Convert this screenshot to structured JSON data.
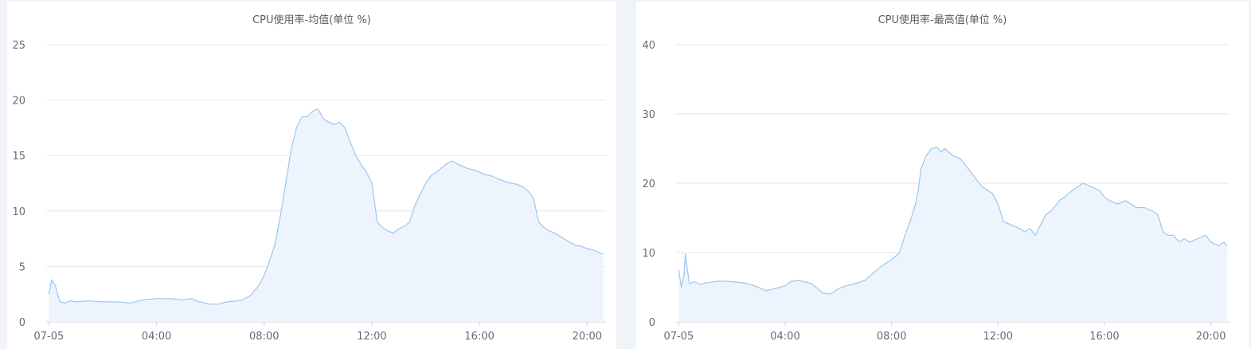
{
  "colors": {
    "line": "#9cc6ef",
    "area": "#eef4fd",
    "grid": "#e3e6ea",
    "axis": "#c9d3e0",
    "label": "#666b73"
  },
  "chart_data": [
    {
      "type": "area",
      "title": "CPU使用率-均值(单位 %)",
      "xlabel": "",
      "ylabel": "",
      "ylim": [
        0,
        25
      ],
      "yticks": [
        0,
        5,
        10,
        15,
        20,
        25
      ],
      "xlim": [
        -0.1,
        20.7
      ],
      "xticks": [
        {
          "x": 0,
          "label": "07-05"
        },
        {
          "x": 4,
          "label": "04:00"
        },
        {
          "x": 8,
          "label": "08:00"
        },
        {
          "x": 12,
          "label": "12:00"
        },
        {
          "x": 16,
          "label": "16:00"
        },
        {
          "x": 20,
          "label": "20:00"
        }
      ],
      "grid": true,
      "legend": "none",
      "series": [
        {
          "x": [
            0,
            0.1,
            0.25,
            0.4,
            0.6,
            0.8,
            1.0,
            1.5,
            2.0,
            2.5,
            3.0,
            3.2,
            3.5,
            4.0,
            4.5,
            5.0,
            5.3,
            5.6,
            6.0,
            6.3,
            6.6,
            7.0,
            7.2,
            7.5,
            7.8,
            8.0,
            8.2,
            8.4,
            8.6,
            8.8,
            9.0,
            9.2,
            9.4,
            9.6,
            9.8,
            10.0,
            10.2,
            10.4,
            10.6,
            10.8,
            11.0,
            11.2,
            11.4,
            11.6,
            11.8,
            12.0,
            12.2,
            12.4,
            12.6,
            12.8,
            13.0,
            13.2,
            13.4,
            13.6,
            13.8,
            14.0,
            14.2,
            14.4,
            14.6,
            14.8,
            15.0,
            15.2,
            15.4,
            15.6,
            15.8,
            16.0,
            16.2,
            16.4,
            16.6,
            16.8,
            17.0,
            17.2,
            17.4,
            17.6,
            17.8,
            18.0,
            18.2,
            18.4,
            18.6,
            18.8,
            19.0,
            19.2,
            19.4,
            19.6,
            19.8,
            20.0,
            20.2,
            20.4,
            20.6
          ],
          "values": [
            2.5,
            3.8,
            3.2,
            1.8,
            1.7,
            1.9,
            1.8,
            1.9,
            1.8,
            1.8,
            1.7,
            1.8,
            2.0,
            2.1,
            2.1,
            2.0,
            2.1,
            1.8,
            1.6,
            1.6,
            1.8,
            1.9,
            2.0,
            2.4,
            3.3,
            4.2,
            5.5,
            7.0,
            9.5,
            12.5,
            15.5,
            17.5,
            18.5,
            18.5,
            19.0,
            19.2,
            18.3,
            18.0,
            17.8,
            18.0,
            17.5,
            16.2,
            15.0,
            14.2,
            13.5,
            12.5,
            9.0,
            8.5,
            8.2,
            8.0,
            8.4,
            8.6,
            9.0,
            10.5,
            11.5,
            12.5,
            13.2,
            13.5,
            13.9,
            14.3,
            14.5,
            14.2,
            14.0,
            13.8,
            13.7,
            13.5,
            13.3,
            13.2,
            13.0,
            12.8,
            12.6,
            12.5,
            12.4,
            12.2,
            11.8,
            11.2,
            9.0,
            8.5,
            8.2,
            8.0,
            7.7,
            7.4,
            7.1,
            6.9,
            6.8,
            6.6,
            6.5,
            6.3,
            6.1
          ]
        }
      ]
    },
    {
      "type": "area",
      "title": "CPU使用率-最高值(单位 %)",
      "xlabel": "",
      "ylabel": "",
      "ylim": [
        0,
        40
      ],
      "yticks": [
        0,
        10,
        20,
        30,
        40
      ],
      "xlim": [
        -0.1,
        20.7
      ],
      "xticks": [
        {
          "x": 0,
          "label": "07-05"
        },
        {
          "x": 4,
          "label": "04:00"
        },
        {
          "x": 8,
          "label": "08:00"
        },
        {
          "x": 12,
          "label": "12:00"
        },
        {
          "x": 16,
          "label": "16:00"
        },
        {
          "x": 20,
          "label": "20:00"
        }
      ],
      "grid": true,
      "legend": "none",
      "series": [
        {
          "x": [
            0,
            0.1,
            0.2,
            0.25,
            0.4,
            0.6,
            0.8,
            1.0,
            1.5,
            2.0,
            2.5,
            3.0,
            3.3,
            3.6,
            4.0,
            4.2,
            4.5,
            5.0,
            5.4,
            5.7,
            6.0,
            6.3,
            6.6,
            7.0,
            7.3,
            7.6,
            8.0,
            8.3,
            8.5,
            8.7,
            8.9,
            9.0,
            9.1,
            9.3,
            9.5,
            9.7,
            9.85,
            10.0,
            10.3,
            10.6,
            10.8,
            11.0,
            11.2,
            11.4,
            11.6,
            11.8,
            12.0,
            12.2,
            12.5,
            12.8,
            13.0,
            13.2,
            13.4,
            13.6,
            13.8,
            14.0,
            14.1,
            14.3,
            14.5,
            14.8,
            15.0,
            15.2,
            15.5,
            15.8,
            16.0,
            16.2,
            16.5,
            16.8,
            17.0,
            17.2,
            17.5,
            17.8,
            18.0,
            18.2,
            18.4,
            18.6,
            18.8,
            19.0,
            19.2,
            19.5,
            19.8,
            20.0,
            20.3,
            20.5,
            20.6
          ],
          "values": [
            7.5,
            5.0,
            6.8,
            9.8,
            5.5,
            5.8,
            5.4,
            5.6,
            5.9,
            5.8,
            5.6,
            5.0,
            4.5,
            4.8,
            5.2,
            5.8,
            6.0,
            5.5,
            4.2,
            4.0,
            4.8,
            5.2,
            5.5,
            6.0,
            7.0,
            8.0,
            9.0,
            10.0,
            12.5,
            14.5,
            17.0,
            19.0,
            22.0,
            24.0,
            25.0,
            25.2,
            24.5,
            25.0,
            24.0,
            23.5,
            22.5,
            21.5,
            20.5,
            19.5,
            19.0,
            18.5,
            17.0,
            14.5,
            14.0,
            13.5,
            13.0,
            13.5,
            12.5,
            14.0,
            15.5,
            16.0,
            16.5,
            17.5,
            18.0,
            19.0,
            19.5,
            20.0,
            19.5,
            19.0,
            18.0,
            17.5,
            17.0,
            17.5,
            17.0,
            16.5,
            16.5,
            16.0,
            15.5,
            13.0,
            12.5,
            12.5,
            11.5,
            12.0,
            11.5,
            12.0,
            12.5,
            11.5,
            11.0,
            11.5,
            11.0
          ]
        }
      ]
    }
  ]
}
